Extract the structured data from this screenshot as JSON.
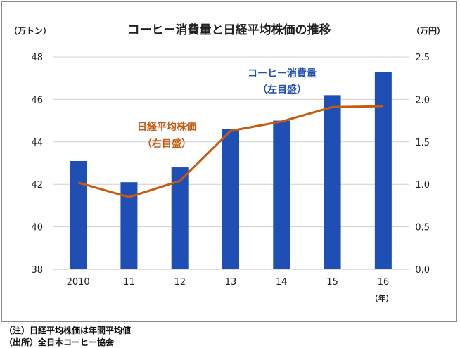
{
  "chart_data": {
    "type": "bar+line",
    "title": "コーヒー消費量と日経平均株価の推移",
    "left_unit": "（万トン）",
    "right_unit": "（万円）",
    "x_unit": "（年）",
    "categories": [
      "2010",
      "11",
      "12",
      "13",
      "14",
      "15",
      "16"
    ],
    "series": [
      {
        "name": "コーヒー消費量",
        "name_line2": "（左目盛）",
        "kind": "bar",
        "axis": "left",
        "color": "#1f4fb5",
        "values": [
          43.1,
          42.1,
          42.8,
          44.6,
          45.0,
          46.2,
          47.3
        ]
      },
      {
        "name": "日経平均株価",
        "name_line2": "（右目盛）",
        "kind": "line",
        "axis": "right",
        "color": "#c55a11",
        "values": [
          1.02,
          0.85,
          1.04,
          1.63,
          1.74,
          1.91,
          1.92
        ]
      }
    ],
    "left_axis": {
      "min": 38,
      "max": 48,
      "ticks": [
        "38",
        "40",
        "42",
        "44",
        "46",
        "48"
      ]
    },
    "right_axis": {
      "min": 0,
      "max": 2.5,
      "ticks": [
        "0.0",
        "0.5",
        "1.0",
        "1.5",
        "2.0",
        "2.5"
      ]
    },
    "grid": true
  },
  "notes": [
    "（注）日経平均株価は年間平均値",
    "（出所）全日本コーヒー協会"
  ]
}
